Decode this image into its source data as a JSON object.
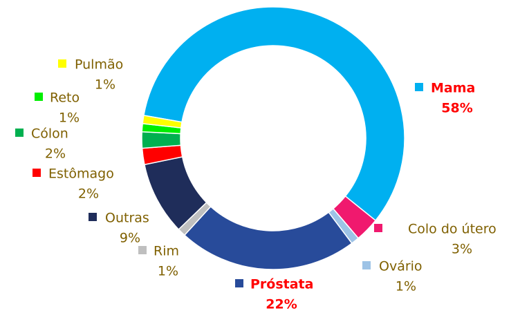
{
  "chart_data": {
    "type": "donut",
    "categories": [
      "Mama",
      "Colo do útero",
      "Ovário",
      "Próstata",
      "Rim",
      "Outras",
      "Estômago",
      "Cólon",
      "Reto",
      "Pulmão"
    ],
    "values": [
      58,
      3,
      1,
      22,
      1,
      9,
      2,
      2,
      1,
      1
    ],
    "value_labels": [
      "58%",
      "3%",
      "1%",
      "22%",
      "1%",
      "9%",
      "2%",
      "2%",
      "1%",
      "1%"
    ],
    "colors": [
      "#00b0f0",
      "#f0196e",
      "#9dc3e6",
      "#284b9a",
      "#bfbfbf",
      "#1f2d5a",
      "#ff0000",
      "#00b050",
      "#00ee00",
      "#ffff00"
    ],
    "label_colors": [
      "#ff0000",
      "#7f6000",
      "#7f6000",
      "#ff0000",
      "#7f6000",
      "#7f6000",
      "#7f6000",
      "#7f6000",
      "#7f6000",
      "#7f6000"
    ]
  }
}
